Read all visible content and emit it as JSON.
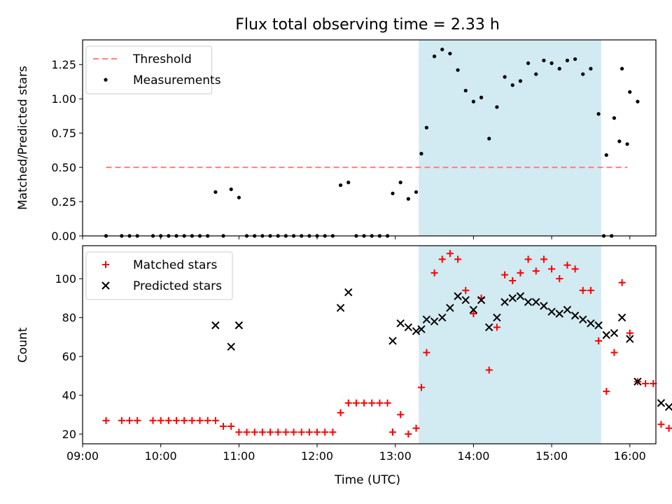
{
  "title": "Flux total observing time = 2.33 h",
  "colors": {
    "threshold": "#ff7f7f",
    "measurement": "#000000",
    "matched": "#ff0000",
    "predicted": "#000000",
    "window": "#add8e6"
  },
  "chart_data": [
    {
      "type": "scatter",
      "ylabel": "Matched/Predicted stars",
      "xlim": [
        "09:00",
        "16:20"
      ],
      "ylim": [
        0,
        1.43
      ],
      "grid": false,
      "legend_position": "top-left",
      "highlight": {
        "start": "13:18",
        "end": "15:38"
      },
      "xticks": [
        "09:00",
        "10:00",
        "11:00",
        "12:00",
        "13:00",
        "14:00",
        "15:00",
        "16:00"
      ],
      "ytick_labels": [
        "0.00",
        "0.25",
        "0.50",
        "0.75",
        "1.00",
        "1.25"
      ],
      "threshold": {
        "name": "Threshold",
        "y": 0.5,
        "x_start": "09:18",
        "x_end": "15:58"
      },
      "series": [
        {
          "name": "Measurements",
          "points": [
            [
              "09:18",
              0
            ],
            [
              "09:30",
              0
            ],
            [
              "09:36",
              0
            ],
            [
              "09:42",
              0
            ],
            [
              "09:54",
              0
            ],
            [
              "10:00",
              0
            ],
            [
              "10:06",
              0
            ],
            [
              "10:12",
              0
            ],
            [
              "10:18",
              0
            ],
            [
              "10:24",
              0
            ],
            [
              "10:30",
              0
            ],
            [
              "10:36",
              0
            ],
            [
              "10:42",
              0.32
            ],
            [
              "10:54",
              0.34
            ],
            [
              "10:48",
              0
            ],
            [
              "11:00",
              0.28
            ],
            [
              "11:06",
              0
            ],
            [
              "11:12",
              0
            ],
            [
              "11:18",
              0
            ],
            [
              "11:24",
              0
            ],
            [
              "11:30",
              0
            ],
            [
              "11:36",
              0
            ],
            [
              "11:42",
              0
            ],
            [
              "11:48",
              0
            ],
            [
              "11:54",
              0
            ],
            [
              "12:00",
              0
            ],
            [
              "12:06",
              0
            ],
            [
              "12:12",
              0
            ],
            [
              "12:18",
              0.37
            ],
            [
              "12:24",
              0.39
            ],
            [
              "12:30",
              0
            ],
            [
              "12:36",
              0
            ],
            [
              "12:42",
              0
            ],
            [
              "12:48",
              0
            ],
            [
              "12:54",
              0
            ],
            [
              "12:58",
              0.31
            ],
            [
              "13:04",
              0.39
            ],
            [
              "13:10",
              0.27
            ],
            [
              "13:16",
              0.32
            ],
            [
              "13:20",
              0.6
            ],
            [
              "13:24",
              0.79
            ],
            [
              "13:30",
              1.31
            ],
            [
              "13:36",
              1.36
            ],
            [
              "13:42",
              1.33
            ],
            [
              "13:48",
              1.21
            ],
            [
              "13:54",
              1.06
            ],
            [
              "14:00",
              0.98
            ],
            [
              "14:06",
              1.01
            ],
            [
              "14:12",
              0.71
            ],
            [
              "14:18",
              0.94
            ],
            [
              "14:24",
              1.16
            ],
            [
              "14:30",
              1.1
            ],
            [
              "14:36",
              1.13
            ],
            [
              "14:42",
              1.26
            ],
            [
              "14:48",
              1.18
            ],
            [
              "14:54",
              1.28
            ],
            [
              "15:00",
              1.26
            ],
            [
              "15:06",
              1.22
            ],
            [
              "15:12",
              1.28
            ],
            [
              "15:18",
              1.29
            ],
            [
              "15:24",
              1.18
            ],
            [
              "15:30",
              1.22
            ],
            [
              "15:36",
              0.89
            ],
            [
              "15:42",
              0.59
            ],
            [
              "15:48",
              0.86
            ],
            [
              "15:54",
              1.22
            ],
            [
              "16:00",
              1.05
            ],
            [
              "16:06",
              0.98
            ],
            [
              "15:40",
              0
            ],
            [
              "15:46",
              0
            ],
            [
              "15:52",
              0.69
            ],
            [
              "15:58",
              0.67
            ]
          ]
        }
      ]
    },
    {
      "type": "scatter",
      "xlabel": "Time (UTC)",
      "ylabel": "Count",
      "xlim": [
        "09:00",
        "16:20"
      ],
      "ylim": [
        15,
        117
      ],
      "grid": false,
      "legend_position": "top-left",
      "highlight": {
        "start": "13:18",
        "end": "15:38"
      },
      "xticks": [
        "09:00",
        "10:00",
        "11:00",
        "12:00",
        "13:00",
        "14:00",
        "15:00",
        "16:00"
      ],
      "ytick_labels": [
        "20",
        "40",
        "60",
        "80",
        "100"
      ],
      "series": [
        {
          "name": "Matched stars",
          "points": [
            [
              "09:18",
              27
            ],
            [
              "09:30",
              27
            ],
            [
              "09:36",
              27
            ],
            [
              "09:42",
              27
            ],
            [
              "09:54",
              27
            ],
            [
              "10:00",
              27
            ],
            [
              "10:06",
              27
            ],
            [
              "10:12",
              27
            ],
            [
              "10:18",
              27
            ],
            [
              "10:24",
              27
            ],
            [
              "10:30",
              27
            ],
            [
              "10:36",
              27
            ],
            [
              "10:42",
              27
            ],
            [
              "10:48",
              24
            ],
            [
              "10:54",
              24
            ],
            [
              "11:00",
              21
            ],
            [
              "11:06",
              21
            ],
            [
              "11:12",
              21
            ],
            [
              "11:18",
              21
            ],
            [
              "11:24",
              21
            ],
            [
              "11:30",
              21
            ],
            [
              "11:36",
              21
            ],
            [
              "11:42",
              21
            ],
            [
              "11:48",
              21
            ],
            [
              "11:54",
              21
            ],
            [
              "12:00",
              21
            ],
            [
              "12:06",
              21
            ],
            [
              "12:12",
              21
            ],
            [
              "12:18",
              31
            ],
            [
              "12:24",
              36
            ],
            [
              "12:30",
              36
            ],
            [
              "12:36",
              36
            ],
            [
              "12:42",
              36
            ],
            [
              "12:48",
              36
            ],
            [
              "12:54",
              36
            ],
            [
              "12:58",
              21
            ],
            [
              "13:04",
              30
            ],
            [
              "13:10",
              20
            ],
            [
              "13:16",
              23
            ],
            [
              "13:20",
              44
            ],
            [
              "13:24",
              62
            ],
            [
              "13:30",
              103
            ],
            [
              "13:36",
              110
            ],
            [
              "13:42",
              113
            ],
            [
              "13:48",
              110
            ],
            [
              "13:54",
              94
            ],
            [
              "14:00",
              82
            ],
            [
              "14:06",
              90
            ],
            [
              "14:12",
              53
            ],
            [
              "14:18",
              75
            ],
            [
              "14:24",
              102
            ],
            [
              "14:30",
              99
            ],
            [
              "14:36",
              103
            ],
            [
              "14:42",
              110
            ],
            [
              "14:48",
              104
            ],
            [
              "14:54",
              110
            ],
            [
              "15:00",
              105
            ],
            [
              "15:06",
              100
            ],
            [
              "15:12",
              107
            ],
            [
              "15:18",
              105
            ],
            [
              "15:24",
              94
            ],
            [
              "15:30",
              94
            ],
            [
              "15:36",
              68
            ],
            [
              "15:42",
              42
            ],
            [
              "15:48",
              62
            ],
            [
              "15:54",
              98
            ],
            [
              "16:00",
              72
            ],
            [
              "16:06",
              47
            ],
            [
              "16:12",
              46
            ],
            [
              "16:18",
              46
            ],
            [
              "16:24",
              25
            ],
            [
              "16:30",
              23
            ]
          ]
        },
        {
          "name": "Predicted stars",
          "points": [
            [
              "10:42",
              76
            ],
            [
              "10:54",
              65
            ],
            [
              "11:00",
              76
            ],
            [
              "12:18",
              85
            ],
            [
              "12:24",
              93
            ],
            [
              "12:58",
              68
            ],
            [
              "13:04",
              77
            ],
            [
              "13:10",
              75
            ],
            [
              "13:16",
              73
            ],
            [
              "13:20",
              74
            ],
            [
              "13:24",
              79
            ],
            [
              "13:30",
              78
            ],
            [
              "13:36",
              80
            ],
            [
              "13:42",
              85
            ],
            [
              "13:48",
              91
            ],
            [
              "13:54",
              89
            ],
            [
              "14:00",
              84
            ],
            [
              "14:06",
              89
            ],
            [
              "14:12",
              75
            ],
            [
              "14:18",
              80
            ],
            [
              "14:24",
              88
            ],
            [
              "14:30",
              90
            ],
            [
              "14:36",
              91
            ],
            [
              "14:42",
              88
            ],
            [
              "14:48",
              88
            ],
            [
              "14:54",
              86
            ],
            [
              "15:00",
              83
            ],
            [
              "15:06",
              82
            ],
            [
              "15:12",
              84
            ],
            [
              "15:18",
              81
            ],
            [
              "15:24",
              79
            ],
            [
              "15:30",
              77
            ],
            [
              "15:36",
              76
            ],
            [
              "15:42",
              71
            ],
            [
              "15:48",
              72
            ],
            [
              "15:54",
              80
            ],
            [
              "16:00",
              69
            ],
            [
              "16:06",
              47
            ],
            [
              "16:24",
              36
            ],
            [
              "16:30",
              34
            ]
          ]
        }
      ]
    }
  ]
}
